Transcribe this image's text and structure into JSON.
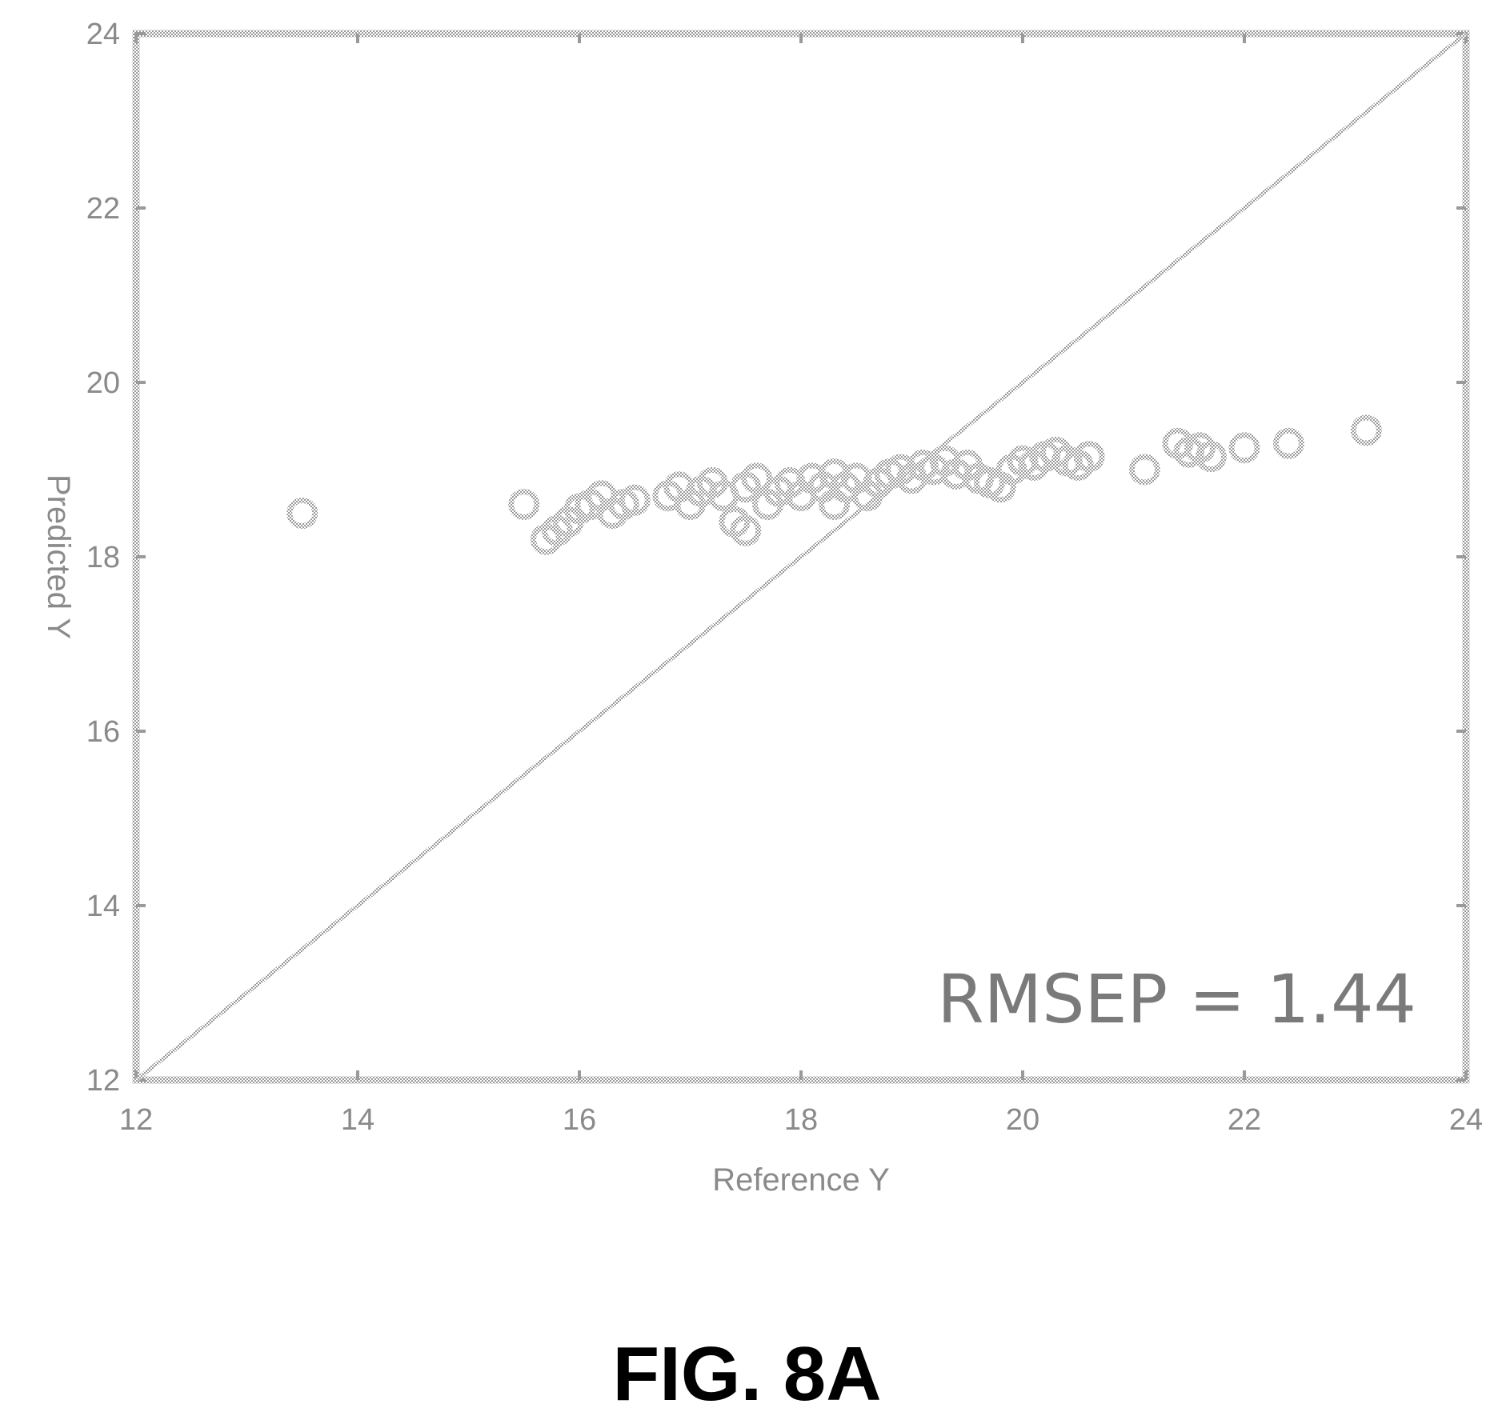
{
  "caption": "FIG. 8A",
  "chart_data": {
    "type": "scatter",
    "xlabel": "Reference Y",
    "ylabel": "Predicted Y",
    "xlim": [
      12,
      24
    ],
    "ylim": [
      12,
      24
    ],
    "x_ticks": [
      "12",
      "14",
      "16",
      "18",
      "20",
      "22",
      "24"
    ],
    "y_ticks": [
      "12",
      "14",
      "16",
      "18",
      "20",
      "22",
      "24"
    ],
    "annotation": "RMSEP = 1.44",
    "reference_line": {
      "from": [
        12,
        12
      ],
      "to": [
        24,
        24
      ]
    },
    "grid": false,
    "series": [
      {
        "marker": "open-circle",
        "points": [
          [
            13.5,
            18.5
          ],
          [
            15.5,
            18.6
          ],
          [
            15.7,
            18.2
          ],
          [
            15.8,
            18.3
          ],
          [
            15.9,
            18.4
          ],
          [
            16.0,
            18.55
          ],
          [
            16.1,
            18.6
          ],
          [
            16.2,
            18.7
          ],
          [
            16.3,
            18.5
          ],
          [
            16.4,
            18.6
          ],
          [
            16.5,
            18.65
          ],
          [
            16.8,
            18.7
          ],
          [
            16.9,
            18.8
          ],
          [
            17.0,
            18.6
          ],
          [
            17.1,
            18.75
          ],
          [
            17.2,
            18.85
          ],
          [
            17.3,
            18.7
          ],
          [
            17.4,
            18.4
          ],
          [
            17.5,
            18.3
          ],
          [
            17.5,
            18.8
          ],
          [
            17.6,
            18.9
          ],
          [
            17.7,
            18.6
          ],
          [
            17.8,
            18.75
          ],
          [
            17.9,
            18.85
          ],
          [
            18.0,
            18.7
          ],
          [
            18.1,
            18.9
          ],
          [
            18.2,
            18.8
          ],
          [
            18.3,
            18.6
          ],
          [
            18.3,
            18.95
          ],
          [
            18.4,
            18.8
          ],
          [
            18.5,
            18.9
          ],
          [
            18.6,
            18.7
          ],
          [
            18.7,
            18.85
          ],
          [
            18.8,
            18.95
          ],
          [
            18.9,
            19.0
          ],
          [
            19.0,
            18.9
          ],
          [
            19.1,
            19.05
          ],
          [
            19.2,
            19.0
          ],
          [
            19.3,
            19.1
          ],
          [
            19.4,
            18.95
          ],
          [
            19.5,
            19.05
          ],
          [
            19.6,
            18.9
          ],
          [
            19.7,
            18.85
          ],
          [
            19.8,
            18.8
          ],
          [
            19.9,
            19.0
          ],
          [
            20.0,
            19.1
          ],
          [
            20.1,
            19.05
          ],
          [
            20.2,
            19.15
          ],
          [
            20.3,
            19.2
          ],
          [
            20.4,
            19.1
          ],
          [
            20.5,
            19.05
          ],
          [
            20.6,
            19.15
          ],
          [
            21.1,
            19.0
          ],
          [
            21.4,
            19.3
          ],
          [
            21.5,
            19.2
          ],
          [
            21.6,
            19.25
          ],
          [
            21.7,
            19.15
          ],
          [
            22.0,
            19.25
          ],
          [
            22.4,
            19.3
          ],
          [
            23.1,
            19.45
          ]
        ]
      }
    ]
  }
}
